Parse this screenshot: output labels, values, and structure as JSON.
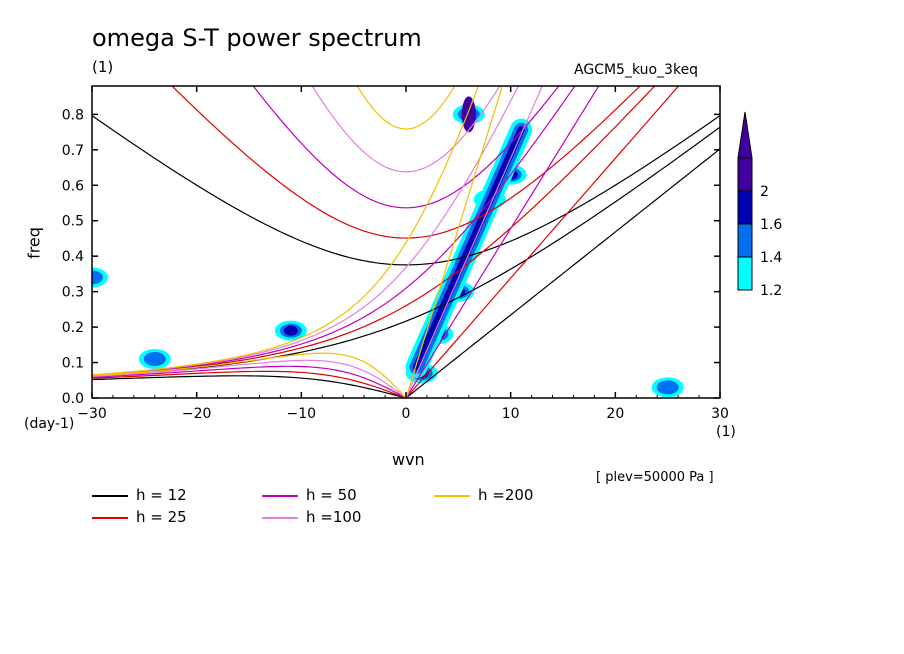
{
  "header": {
    "title": "omega S-T power spectrum",
    "units": "(1)",
    "run": "AGCM5_kuo_3keq",
    "plev": "[ plev=50000 Pa ]"
  },
  "colors": {
    "h12": "#000000",
    "h25": "#e00000",
    "h50": "#c000c0",
    "h100": "#e080e0",
    "h200": "#f0c000",
    "shade_1_2": "#00ffff",
    "shade_1_4": "#0070f0",
    "shade_1_6": "#0000b0",
    "shade_2": "#4000a0"
  },
  "chart_data": {
    "type": "heatmap",
    "title": "omega S-T power spectrum",
    "xlabel": "wvn",
    "ylabel": "freq",
    "x_unit": "(1)",
    "y_unit": "(day-1)",
    "xlim": [
      -30,
      30
    ],
    "ylim": [
      0,
      0.88
    ],
    "x_ticks": [
      -30,
      -20,
      -10,
      0,
      10,
      20,
      30
    ],
    "y_ticks": [
      0.0,
      0.1,
      0.2,
      0.3,
      0.4,
      0.5,
      0.6,
      0.7,
      0.8
    ],
    "x_tick_labels": [
      "−30",
      "−20",
      "−10",
      "0",
      "10",
      "20",
      "30"
    ],
    "y_tick_labels": [
      "0.0",
      "0.1",
      "0.2",
      "0.3",
      "0.4",
      "0.5",
      "0.6",
      "0.7",
      "0.8"
    ],
    "colorbar": {
      "levels": [
        1.2,
        1.4,
        1.6,
        2
      ],
      "labels": [
        "1.2",
        "1.4",
        "1.6",
        "2"
      ],
      "colors": [
        "#00ffff",
        "#0070f0",
        "#0000b0",
        "#4000a0"
      ]
    },
    "dispersion_curves": [
      {
        "label": "h = 12",
        "h": 12,
        "color": "#000000"
      },
      {
        "label": "h = 25",
        "h": 25,
        "color": "#e00000"
      },
      {
        "label": "h = 50",
        "h": 50,
        "color": "#c000c0"
      },
      {
        "label": "h =100",
        "h": 100,
        "color": "#e080e0"
      },
      {
        "label": "h =200",
        "h": 200,
        "color": "#f0c000"
      }
    ],
    "shaded_regions": [
      {
        "x": 6,
        "y": 0.8,
        "level": 2
      },
      {
        "x": 5,
        "y": 0.3,
        "level": 1.6
      },
      {
        "x": 3,
        "y": 0.18,
        "level": 1.6
      },
      {
        "x": 8,
        "y": 0.56,
        "level": 1.6
      },
      {
        "x": 10,
        "y": 0.63,
        "level": 1.6
      },
      {
        "x": -11,
        "y": 0.19,
        "level": 1.6
      },
      {
        "x": 1.5,
        "y": 0.07,
        "level": 1.6
      },
      {
        "x": -30,
        "y": 0.34,
        "level": 1.4
      },
      {
        "x": -24,
        "y": 0.11,
        "level": 1.4
      },
      {
        "x": 25,
        "y": 0.03,
        "level": 1.4
      }
    ]
  }
}
